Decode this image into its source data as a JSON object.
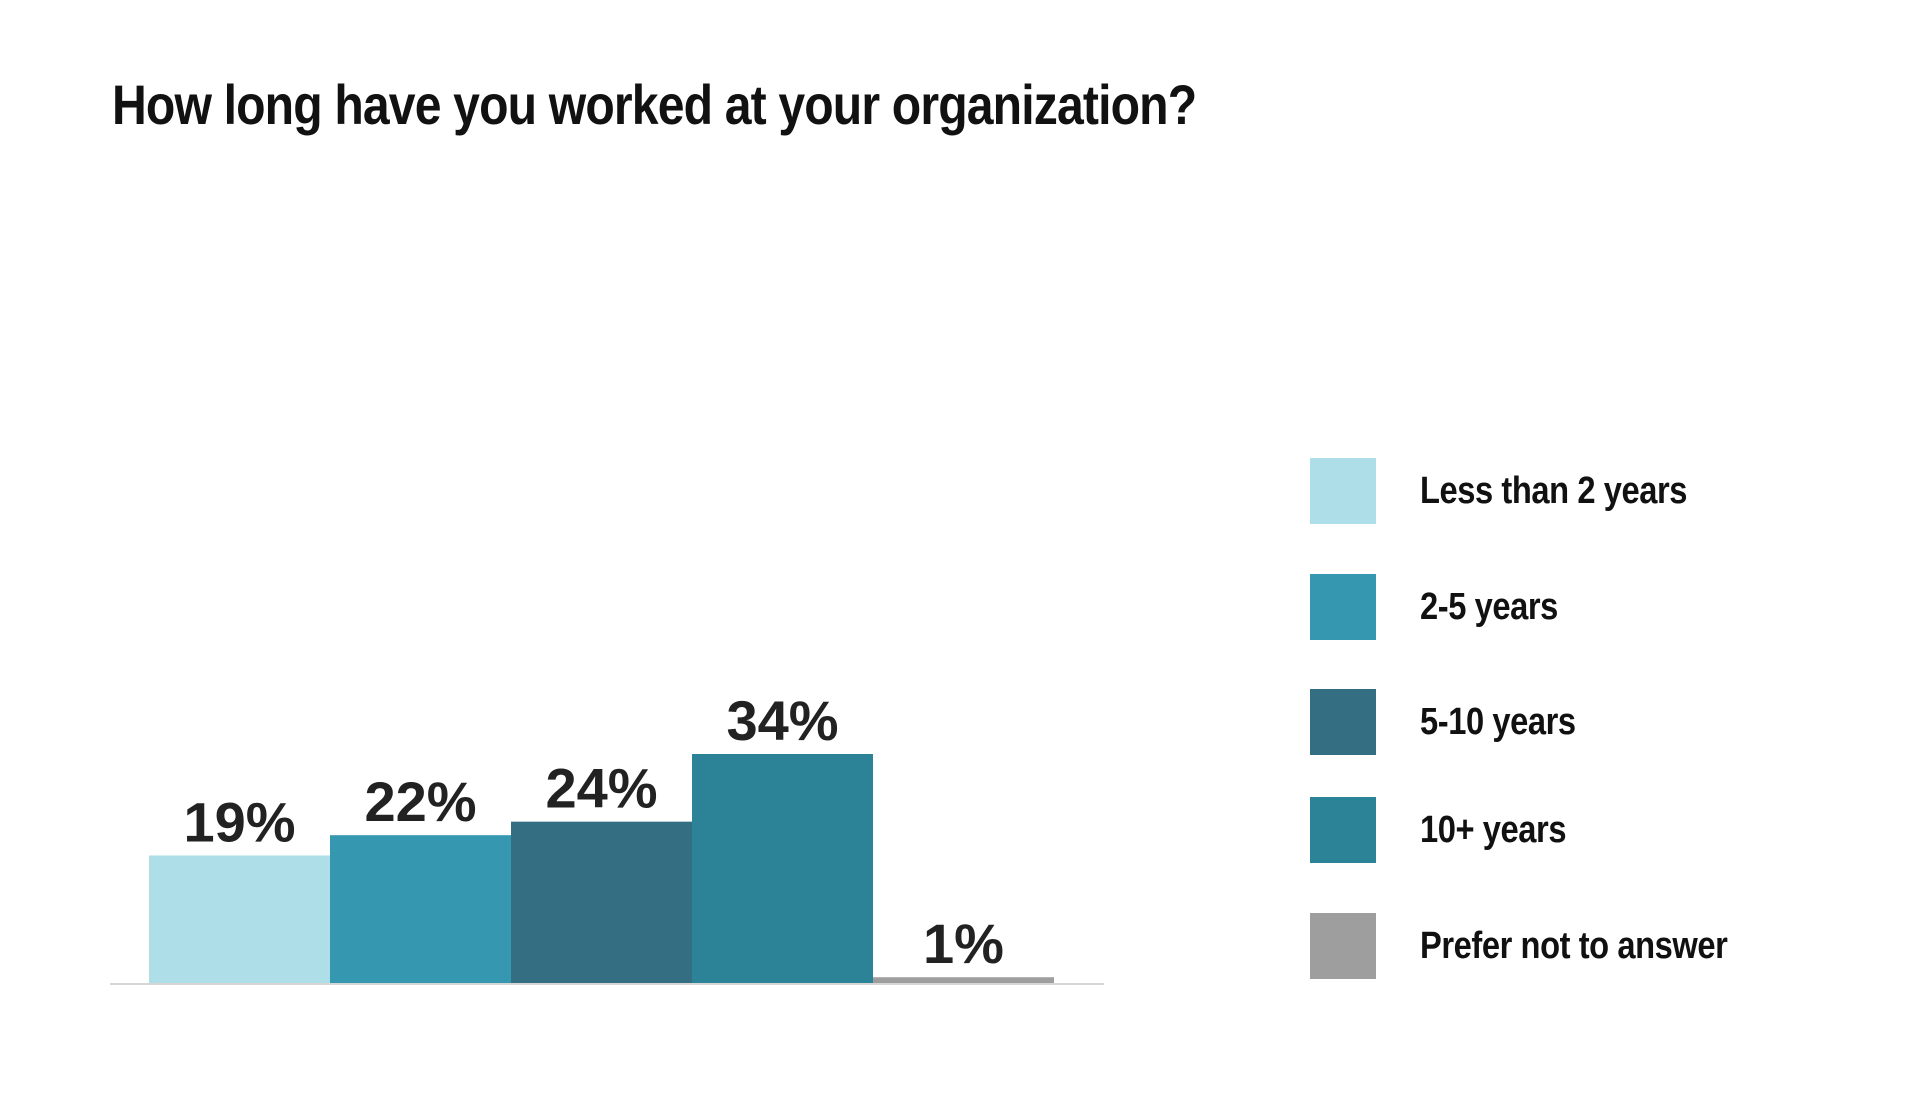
{
  "title": "How long have you worked at your organization?",
  "chart_data": {
    "type": "bar",
    "categories": [
      "Less than 2 years",
      "2-5 years",
      "5-10 years",
      "10+ years",
      "Prefer not to answer"
    ],
    "values": [
      19,
      22,
      24,
      34,
      1
    ],
    "value_labels": [
      "19%",
      "22%",
      "24%",
      "34%",
      "1%"
    ],
    "colors": [
      "#AEDFE9",
      "#3698B0",
      "#336E82",
      "#2C8297",
      "#9E9E9E"
    ],
    "ylim": [
      0,
      34
    ],
    "grid": false,
    "legend_position": "right"
  },
  "legend": [
    {
      "label": "Less than 2 years",
      "color": "#AEDFE9"
    },
    {
      "label": "2-5 years",
      "color": "#3698B0"
    },
    {
      "label": "5-10 years",
      "color": "#336E82"
    },
    {
      "label": "10+ years",
      "color": "#2C8297"
    },
    {
      "label": "Prefer not to answer",
      "color": "#9E9E9E"
    }
  ]
}
